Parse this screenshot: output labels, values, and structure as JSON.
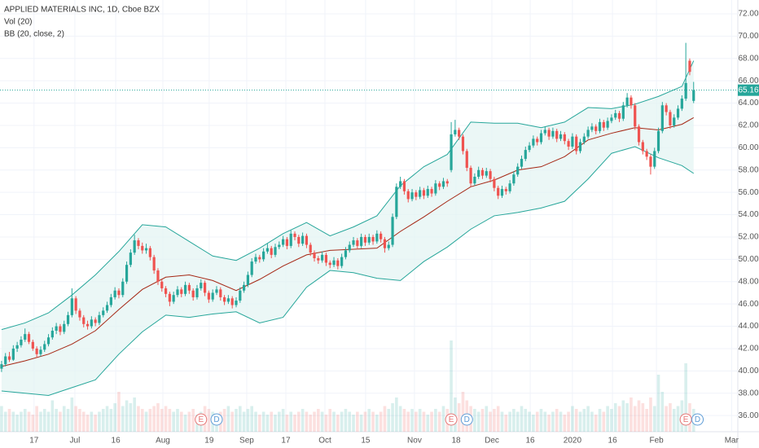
{
  "chart_data": {
    "type": "candlestick",
    "title": "APPLIED MATERIALS INC, 1D, Cboe BZX",
    "indicators": [
      "Vol (20)",
      "BB (20, close, 2)"
    ],
    "up_color": "#26a69a",
    "down_color": "#ef5350",
    "ohlc": [
      [
        40.2,
        40.9,
        39.9,
        40.6
      ],
      [
        40.6,
        41.6,
        40.4,
        41.3
      ],
      [
        41.3,
        41.7,
        40.8,
        41.0
      ],
      [
        41.0,
        42.3,
        40.9,
        42.0
      ],
      [
        42.0,
        42.6,
        41.7,
        42.3
      ],
      [
        42.3,
        43.1,
        42.1,
        42.8
      ],
      [
        42.8,
        43.8,
        42.6,
        43.3
      ],
      [
        43.3,
        43.5,
        42.4,
        42.6
      ],
      [
        42.6,
        42.8,
        41.8,
        42.0
      ],
      [
        42.0,
        42.2,
        41.2,
        41.5
      ],
      [
        41.5,
        42.2,
        41.3,
        41.9
      ],
      [
        41.9,
        42.7,
        41.7,
        42.4
      ],
      [
        42.4,
        43.3,
        42.2,
        43.0
      ],
      [
        43.0,
        43.9,
        42.8,
        43.6
      ],
      [
        43.6,
        44.3,
        43.3,
        44.0
      ],
      [
        44.0,
        44.2,
        43.2,
        43.5
      ],
      [
        43.5,
        44.5,
        43.3,
        44.2
      ],
      [
        44.2,
        45.3,
        44.0,
        45.0
      ],
      [
        45.0,
        47.4,
        44.8,
        46.5
      ],
      [
        46.5,
        46.7,
        45.1,
        45.4
      ],
      [
        45.4,
        45.6,
        44.5,
        44.8
      ],
      [
        44.8,
        45.0,
        43.9,
        44.2
      ],
      [
        44.2,
        44.5,
        43.7,
        44.0
      ],
      [
        44.0,
        44.9,
        43.8,
        44.6
      ],
      [
        44.6,
        44.8,
        44.0,
        44.3
      ],
      [
        44.3,
        45.3,
        44.1,
        45.0
      ],
      [
        45.0,
        45.7,
        44.8,
        45.4
      ],
      [
        45.4,
        46.2,
        45.2,
        45.9
      ],
      [
        45.9,
        46.9,
        45.7,
        46.6
      ],
      [
        46.6,
        47.5,
        46.4,
        47.2
      ],
      [
        47.2,
        47.4,
        46.5,
        46.8
      ],
      [
        46.8,
        48.3,
        46.6,
        48.0
      ],
      [
        48.0,
        49.8,
        47.8,
        49.5
      ],
      [
        49.5,
        50.9,
        49.3,
        50.6
      ],
      [
        50.6,
        52.2,
        50.4,
        51.7
      ],
      [
        51.7,
        51.9,
        50.9,
        51.2
      ],
      [
        51.2,
        51.5,
        50.5,
        50.8
      ],
      [
        50.8,
        51.4,
        50.5,
        51.0
      ],
      [
        51.0,
        51.2,
        49.9,
        50.2
      ],
      [
        50.2,
        50.4,
        48.7,
        49.0
      ],
      [
        49.0,
        49.2,
        47.7,
        48.0
      ],
      [
        48.0,
        48.2,
        47.1,
        47.4
      ],
      [
        47.4,
        47.6,
        46.6,
        46.9
      ],
      [
        46.9,
        47.1,
        45.8,
        46.2
      ],
      [
        46.2,
        47.1,
        46.0,
        46.8
      ],
      [
        46.8,
        47.6,
        46.6,
        47.3
      ],
      [
        47.3,
        47.5,
        46.6,
        46.9
      ],
      [
        46.9,
        48.0,
        46.7,
        47.7
      ],
      [
        47.7,
        47.9,
        46.9,
        47.2
      ],
      [
        47.2,
        47.4,
        46.3,
        46.6
      ],
      [
        46.6,
        47.7,
        46.4,
        47.4
      ],
      [
        47.4,
        48.2,
        47.2,
        47.9
      ],
      [
        47.9,
        48.1,
        46.7,
        47.0
      ],
      [
        47.0,
        47.2,
        46.1,
        46.4
      ],
      [
        46.4,
        47.3,
        46.2,
        47.0
      ],
      [
        47.0,
        47.6,
        46.8,
        47.3
      ],
      [
        47.3,
        47.5,
        46.3,
        46.6
      ],
      [
        46.6,
        46.8,
        45.9,
        46.2
      ],
      [
        46.2,
        46.8,
        46.0,
        46.5
      ],
      [
        46.5,
        46.7,
        45.6,
        45.9
      ],
      [
        45.9,
        46.6,
        45.7,
        46.3
      ],
      [
        46.3,
        47.5,
        46.1,
        47.2
      ],
      [
        47.2,
        48.0,
        47.0,
        47.7
      ],
      [
        47.7,
        48.9,
        47.5,
        48.6
      ],
      [
        48.6,
        50.1,
        48.4,
        49.8
      ],
      [
        49.8,
        50.5,
        49.6,
        50.2
      ],
      [
        50.2,
        50.4,
        49.7,
        50.0
      ],
      [
        50.0,
        51.0,
        49.8,
        50.7
      ],
      [
        50.7,
        51.4,
        50.5,
        51.0
      ],
      [
        51.0,
        51.2,
        50.1,
        50.4
      ],
      [
        50.4,
        51.4,
        50.2,
        51.1
      ],
      [
        51.1,
        51.6,
        50.9,
        51.3
      ],
      [
        51.3,
        52.1,
        51.1,
        51.8
      ],
      [
        51.8,
        52.0,
        50.9,
        51.2
      ],
      [
        51.2,
        52.6,
        51.0,
        52.3
      ],
      [
        52.3,
        52.5,
        51.7,
        52.0
      ],
      [
        52.0,
        52.2,
        51.1,
        51.4
      ],
      [
        51.4,
        52.4,
        51.2,
        52.1
      ],
      [
        52.1,
        52.3,
        51.0,
        51.3
      ],
      [
        51.3,
        51.5,
        50.3,
        50.6
      ],
      [
        50.6,
        50.8,
        49.8,
        50.1
      ],
      [
        50.1,
        50.3,
        49.6,
        49.9
      ],
      [
        49.9,
        50.7,
        49.7,
        50.4
      ],
      [
        50.4,
        50.6,
        49.4,
        49.7
      ],
      [
        49.7,
        49.9,
        49.2,
        49.5
      ],
      [
        49.5,
        50.2,
        49.3,
        49.9
      ],
      [
        49.9,
        50.1,
        49.1,
        49.4
      ],
      [
        49.4,
        50.5,
        49.2,
        50.2
      ],
      [
        50.2,
        51.1,
        50.0,
        50.8
      ],
      [
        50.8,
        51.6,
        50.6,
        51.3
      ],
      [
        51.3,
        52.0,
        51.1,
        51.7
      ],
      [
        51.7,
        51.9,
        50.9,
        51.2
      ],
      [
        51.2,
        52.3,
        51.0,
        52.0
      ],
      [
        52.0,
        52.2,
        51.2,
        51.5
      ],
      [
        51.5,
        52.3,
        51.3,
        52.0
      ],
      [
        52.0,
        52.2,
        51.3,
        51.6
      ],
      [
        51.6,
        52.6,
        51.4,
        52.3
      ],
      [
        52.3,
        52.5,
        51.5,
        51.8
      ],
      [
        51.8,
        52.0,
        50.6,
        51.0
      ],
      [
        51.0,
        51.6,
        50.8,
        51.3
      ],
      [
        51.3,
        54.1,
        51.1,
        53.8
      ],
      [
        53.8,
        56.8,
        53.6,
        56.5
      ],
      [
        56.5,
        57.4,
        56.3,
        57.0
      ],
      [
        57.0,
        57.2,
        55.8,
        56.1
      ],
      [
        56.1,
        56.3,
        55.1,
        55.4
      ],
      [
        55.4,
        56.3,
        55.2,
        56.0
      ],
      [
        56.0,
        56.2,
        55.3,
        55.6
      ],
      [
        55.6,
        56.5,
        55.4,
        56.2
      ],
      [
        56.2,
        56.4,
        55.4,
        55.7
      ],
      [
        55.7,
        56.6,
        55.5,
        56.3
      ],
      [
        56.3,
        56.5,
        55.6,
        55.9
      ],
      [
        55.9,
        57.1,
        55.7,
        56.8
      ],
      [
        56.8,
        57.0,
        56.2,
        56.5
      ],
      [
        56.5,
        57.3,
        56.3,
        57.0
      ],
      [
        57.0,
        57.2,
        56.5,
        56.8
      ],
      [
        58.0,
        62.3,
        57.8,
        61.2
      ],
      [
        61.2,
        62.5,
        61.0,
        61.6
      ],
      [
        61.6,
        61.8,
        60.7,
        61.0
      ],
      [
        61.0,
        61.2,
        59.4,
        59.7
      ],
      [
        59.7,
        59.9,
        57.9,
        58.2
      ],
      [
        58.2,
        58.4,
        56.5,
        56.8
      ],
      [
        56.8,
        57.7,
        56.6,
        57.4
      ],
      [
        57.4,
        58.3,
        57.2,
        58.0
      ],
      [
        58.0,
        58.2,
        57.2,
        57.5
      ],
      [
        57.5,
        58.2,
        57.3,
        57.9
      ],
      [
        57.9,
        58.1,
        56.9,
        57.2
      ],
      [
        57.2,
        57.4,
        56.1,
        56.4
      ],
      [
        56.4,
        56.6,
        55.4,
        55.7
      ],
      [
        55.7,
        56.6,
        55.5,
        56.3
      ],
      [
        56.3,
        56.5,
        55.8,
        56.1
      ],
      [
        56.1,
        57.1,
        55.9,
        56.8
      ],
      [
        56.8,
        57.9,
        56.6,
        57.6
      ],
      [
        57.6,
        58.6,
        57.4,
        58.3
      ],
      [
        58.3,
        59.3,
        58.1,
        59.0
      ],
      [
        59.0,
        60.1,
        58.8,
        59.8
      ],
      [
        59.8,
        60.5,
        59.6,
        60.2
      ],
      [
        60.2,
        61.1,
        60.0,
        60.8
      ],
      [
        60.8,
        61.0,
        60.2,
        60.5
      ],
      [
        60.5,
        61.6,
        60.3,
        61.3
      ],
      [
        61.3,
        61.9,
        61.1,
        61.6
      ],
      [
        61.6,
        61.8,
        60.7,
        61.0
      ],
      [
        61.0,
        61.8,
        60.8,
        61.5
      ],
      [
        61.5,
        61.7,
        60.5,
        60.8
      ],
      [
        60.8,
        61.5,
        60.6,
        61.2
      ],
      [
        61.2,
        61.4,
        60.3,
        60.6
      ],
      [
        60.6,
        60.8,
        59.8,
        60.1
      ],
      [
        60.1,
        61.3,
        59.9,
        61.0
      ],
      [
        61.0,
        61.2,
        59.4,
        59.7
      ],
      [
        59.7,
        60.8,
        59.5,
        60.5
      ],
      [
        60.5,
        61.3,
        60.3,
        61.0
      ],
      [
        61.0,
        61.9,
        60.8,
        61.6
      ],
      [
        61.6,
        62.2,
        61.4,
        61.9
      ],
      [
        61.9,
        62.1,
        61.2,
        61.5
      ],
      [
        61.5,
        62.6,
        61.3,
        62.3
      ],
      [
        62.3,
        62.5,
        61.5,
        61.8
      ],
      [
        61.8,
        62.7,
        61.6,
        62.4
      ],
      [
        62.4,
        63.0,
        62.2,
        62.7
      ],
      [
        62.7,
        63.4,
        62.5,
        63.1
      ],
      [
        63.1,
        63.3,
        62.3,
        62.6
      ],
      [
        62.6,
        64.1,
        62.4,
        63.8
      ],
      [
        63.8,
        64.9,
        63.6,
        64.5
      ],
      [
        64.5,
        64.7,
        63.5,
        63.8
      ],
      [
        63.8,
        64.0,
        61.6,
        61.9
      ],
      [
        61.9,
        62.1,
        60.2,
        60.5
      ],
      [
        60.5,
        60.7,
        59.4,
        59.7
      ],
      [
        59.7,
        59.9,
        58.9,
        59.2
      ],
      [
        59.2,
        59.4,
        57.6,
        58.3
      ],
      [
        58.3,
        60.0,
        58.1,
        59.7
      ],
      [
        59.7,
        61.8,
        59.5,
        61.5
      ],
      [
        61.5,
        64.1,
        61.3,
        63.8
      ],
      [
        63.8,
        64.0,
        62.9,
        63.2
      ],
      [
        63.2,
        63.4,
        61.7,
        62.0
      ],
      [
        62.0,
        63.0,
        61.8,
        62.7
      ],
      [
        62.7,
        63.8,
        62.5,
        63.5
      ],
      [
        63.5,
        64.7,
        63.3,
        64.4
      ],
      [
        64.4,
        69.4,
        64.2,
        65.8
      ],
      [
        67.8,
        68.0,
        66.5,
        66.8
      ],
      [
        64.2,
        65.9,
        64.0,
        65.16
      ]
    ],
    "volume": [
      9,
      7,
      8,
      7,
      6,
      7,
      8,
      7,
      6,
      9,
      7,
      8,
      7,
      11,
      8,
      7,
      9,
      8,
      12,
      9,
      8,
      7,
      6,
      7,
      6,
      7,
      8,
      9,
      8,
      10,
      14,
      9,
      11,
      10,
      12,
      9,
      8,
      7,
      8,
      9,
      10,
      8,
      9,
      8,
      7,
      8,
      7,
      6,
      7,
      8,
      6,
      7,
      9,
      8,
      7,
      6,
      7,
      8,
      9,
      7,
      8,
      9,
      7,
      8,
      9,
      7,
      6,
      7,
      6,
      7,
      6,
      7,
      8,
      6,
      7,
      6,
      7,
      8,
      7,
      6,
      7,
      8,
      7,
      6,
      8,
      7,
      6,
      7,
      8,
      7,
      6,
      7,
      6,
      7,
      8,
      7,
      6,
      7,
      9,
      8,
      10,
      12,
      9,
      8,
      7,
      8,
      7,
      8,
      7,
      6,
      7,
      8,
      7,
      9,
      8,
      32,
      12,
      10,
      14,
      11,
      9,
      8,
      7,
      8,
      9,
      7,
      8,
      9,
      7,
      6,
      7,
      8,
      7,
      9,
      8,
      7,
      6,
      7,
      8,
      7,
      6,
      7,
      8,
      7,
      6,
      7,
      9,
      8,
      7,
      8,
      9,
      7,
      6,
      8,
      7,
      9,
      8,
      10,
      9,
      11,
      10,
      12,
      9,
      11,
      10,
      8,
      12,
      9,
      20,
      14,
      9,
      10,
      8,
      9,
      11,
      24,
      10,
      8
    ],
    "bb": {
      "x": [
        0,
        6,
        12,
        18,
        24,
        30,
        36,
        42,
        48,
        54,
        60,
        66,
        72,
        78,
        84,
        90,
        96,
        102,
        108,
        114,
        120,
        126,
        132,
        138,
        144,
        150,
        156,
        162,
        168,
        174,
        177
      ],
      "upper": [
        43.7,
        44.3,
        45.2,
        46.8,
        48.6,
        50.7,
        53.1,
        52.9,
        51.6,
        50.3,
        49.9,
        51.0,
        52.3,
        53.3,
        52.1,
        52.9,
        53.9,
        56.6,
        58.3,
        59.4,
        62.3,
        62.2,
        62.2,
        61.8,
        62.3,
        63.6,
        63.5,
        63.9,
        64.6,
        65.5,
        67.8
      ],
      "middle": [
        40.4,
        40.9,
        41.5,
        42.4,
        43.6,
        45.5,
        47.3,
        48.4,
        48.6,
        48.1,
        47.2,
        48.2,
        49.4,
        50.4,
        50.8,
        50.9,
        51.0,
        52.5,
        53.8,
        55.2,
        56.5,
        57.1,
        58.0,
        58.3,
        59.2,
        60.7,
        61.3,
        61.8,
        61.6,
        62.1,
        62.7
      ],
      "lower": [
        38.2,
        38.0,
        37.8,
        38.5,
        39.2,
        41.5,
        43.5,
        45.0,
        44.8,
        45.1,
        45.3,
        44.3,
        44.8,
        47.5,
        49.0,
        48.8,
        48.3,
        48.1,
        49.8,
        51.1,
        52.7,
        53.9,
        54.2,
        54.6,
        55.2,
        57.2,
        59.5,
        60.1,
        59.1,
        58.4,
        57.7
      ],
      "band_color": "#26a69a",
      "basis_color": "#a52714",
      "fill_color": "#e3f4f2"
    },
    "last_price": 65.16,
    "last_price_color": "#26a69a",
    "events": [
      {
        "label": "E",
        "x": 51
      },
      {
        "label": "D",
        "x": 55
      },
      {
        "label": "E",
        "x": 115
      },
      {
        "label": "D",
        "x": 119
      },
      {
        "label": "E",
        "x": 175
      },
      {
        "label": "D",
        "x": 178
      }
    ],
    "xlim": [
      -0.4,
      188.3
    ],
    "xticks": [
      {
        "value": 8.3,
        "label": "17"
      },
      {
        "value": 18.75,
        "label": "Jul"
      },
      {
        "value": 29.2,
        "label": "16"
      },
      {
        "value": 41.25,
        "label": "Aug"
      },
      {
        "value": 53.1,
        "label": "19"
      },
      {
        "value": 62.7,
        "label": "Sep"
      },
      {
        "value": 72.7,
        "label": "17"
      },
      {
        "value": 82.7,
        "label": "Oct"
      },
      {
        "value": 93.1,
        "label": "15"
      },
      {
        "value": 105.6,
        "label": "Nov"
      },
      {
        "value": 116.25,
        "label": "18"
      },
      {
        "value": 125.4,
        "label": "Dec"
      },
      {
        "value": 135.2,
        "label": "16"
      },
      {
        "value": 146,
        "label": "2020"
      },
      {
        "value": 156.25,
        "label": "16"
      },
      {
        "value": 167.5,
        "label": "Feb"
      },
      {
        "value": 186.7,
        "label": "Mar"
      }
    ],
    "ylim": [
      34.55,
      73.24
    ],
    "yticks": [
      {
        "value": 36,
        "label": "36.00"
      },
      {
        "value": 38,
        "label": "38.00"
      },
      {
        "value": 40,
        "label": "40.00"
      },
      {
        "value": 42,
        "label": "42.00"
      },
      {
        "value": 44,
        "label": "44.00"
      },
      {
        "value": 46,
        "label": "46.00"
      },
      {
        "value": 48,
        "label": "48.00"
      },
      {
        "value": 50,
        "label": "50.00"
      },
      {
        "value": 52,
        "label": "52.00"
      },
      {
        "value": 54,
        "label": "54.00"
      },
      {
        "value": 56,
        "label": "56.00"
      },
      {
        "value": 58,
        "label": "58.00"
      },
      {
        "value": 60,
        "label": "60.00"
      },
      {
        "value": 62,
        "label": "62.00"
      },
      {
        "value": 64,
        "label": "64.00"
      },
      {
        "value": 66,
        "label": "66.00"
      },
      {
        "value": 68,
        "label": "68.00"
      },
      {
        "value": 70,
        "label": "70.00"
      },
      {
        "value": 72,
        "label": "72.00"
      }
    ],
    "grid": true
  }
}
